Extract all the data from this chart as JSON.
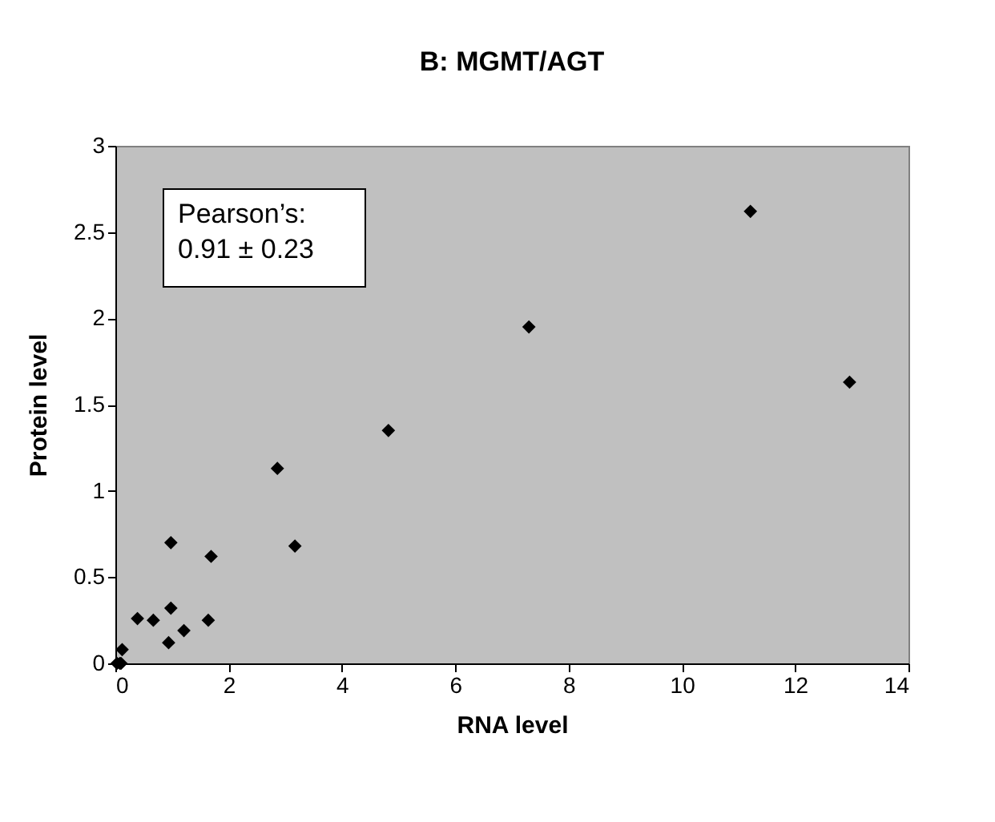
{
  "chart_data": {
    "type": "scatter",
    "title": "B: MGMT/AGT",
    "xlabel": "RNA level",
    "ylabel": "Protein level",
    "x": [
      0.03,
      0.08,
      0.1,
      0.12,
      0.39,
      0.67,
      0.94,
      0.98,
      0.98,
      1.21,
      1.64,
      1.69,
      2.86,
      3.17,
      4.82,
      7.3,
      11.21,
      12.96
    ],
    "series": [
      {
        "color": "#000000",
        "values": [
          0,
          0,
          0,
          0.08,
          0.26,
          0.25,
          0.12,
          0.32,
          0.7,
          0.19,
          0.25,
          0.62,
          1.13,
          0.68,
          1.35,
          1.95,
          2.62,
          1.63
        ]
      }
    ],
    "xlim": [
      0,
      14
    ],
    "xticks": [
      0,
      2,
      4,
      6,
      8,
      10,
      12,
      14
    ],
    "ylim": [
      0,
      3
    ],
    "yticks": [
      0,
      0.5,
      1,
      1.5,
      2,
      2.5,
      3
    ],
    "marker": "diamond",
    "grid": false,
    "annotations": [
      "Pearson’s:\n0.91 ± 0.23"
    ]
  }
}
